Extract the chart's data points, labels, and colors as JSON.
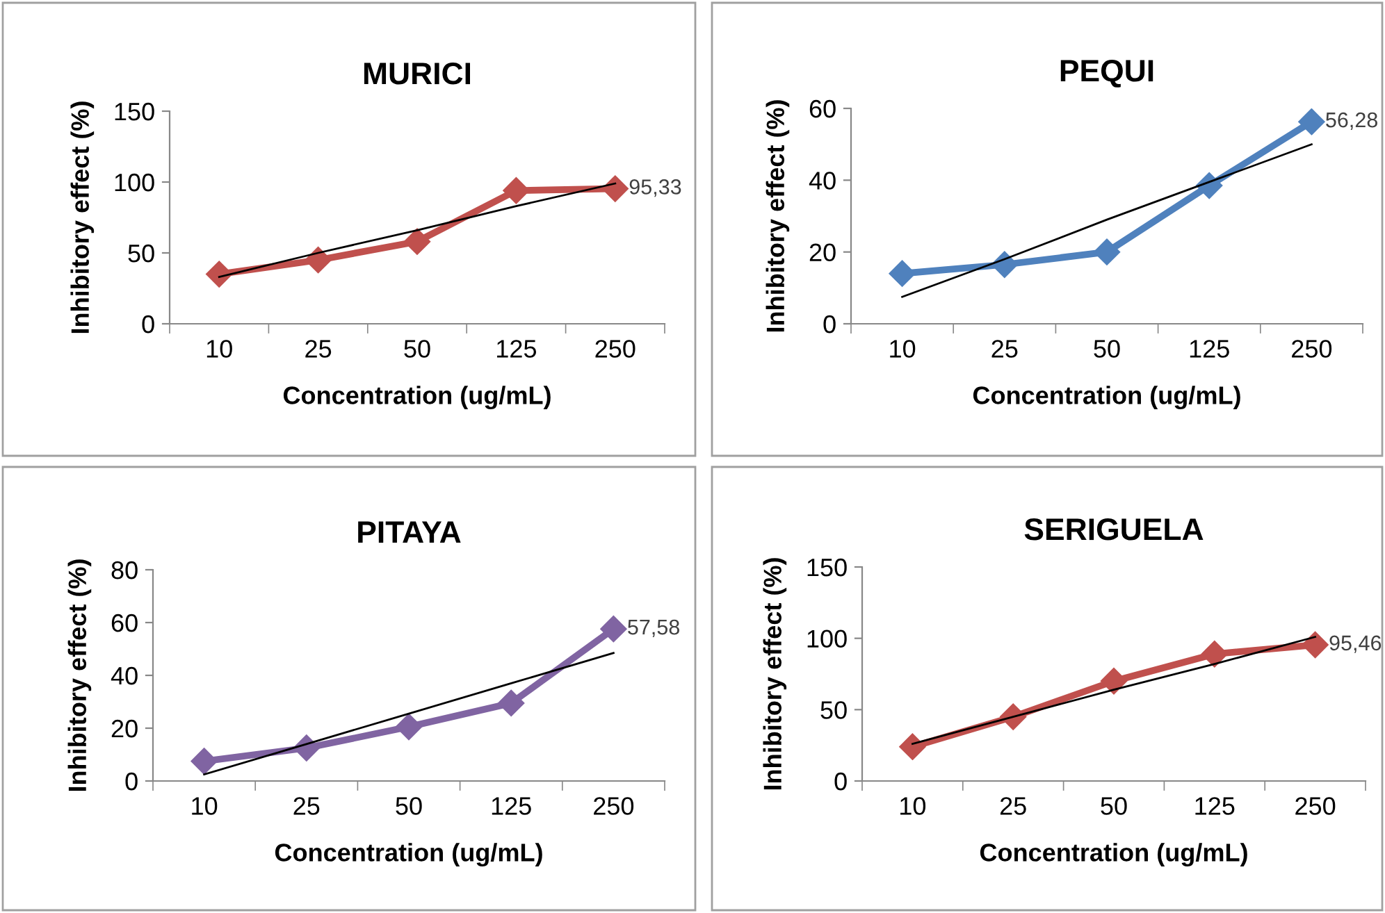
{
  "chart_data": [
    {
      "type": "line",
      "title": "MURICI",
      "xlabel": "Concentration (ug/mL)",
      "ylabel": "Inhibitory effect (%)",
      "categories": [
        "10",
        "25",
        "50",
        "125",
        "250"
      ],
      "ylim": [
        0,
        150
      ],
      "yticks": [
        0,
        50,
        100,
        150
      ],
      "grid": false,
      "series": [
        {
          "color": "#c0504d",
          "marker": "diamond",
          "values": [
            35,
            45,
            58,
            94,
            95.33
          ],
          "value_labels": [
            null,
            null,
            null,
            null,
            "95,33"
          ]
        },
        {
          "type": "line",
          "color": "#000000",
          "marker": "none",
          "values": [
            33,
            50,
            66,
            83,
            99
          ]
        }
      ]
    },
    {
      "type": "line",
      "title": "PEQUI",
      "xlabel": "Concentration (ug/mL)",
      "ylabel": "Inhibitory effect (%)",
      "categories": [
        "10",
        "25",
        "50",
        "125",
        "250"
      ],
      "ylim": [
        0,
        60
      ],
      "yticks": [
        0,
        20,
        40,
        60
      ],
      "grid": false,
      "series": [
        {
          "color": "#4f81bd",
          "marker": "diamond",
          "values": [
            14,
            16.5,
            20,
            38.5,
            56.28
          ],
          "value_labels": [
            null,
            null,
            null,
            null,
            "56,28"
          ]
        },
        {
          "type": "line",
          "color": "#000000",
          "marker": "none",
          "values": [
            7.5,
            18,
            29,
            39.5,
            50
          ]
        }
      ]
    },
    {
      "type": "line",
      "title": "PITAYA",
      "xlabel": "Concentration (ug/mL)",
      "ylabel": "Inhibitory effect (%)",
      "categories": [
        "10",
        "25",
        "50",
        "125",
        "250"
      ],
      "ylim": [
        0,
        80
      ],
      "yticks": [
        0,
        20,
        40,
        60,
        80
      ],
      "grid": false,
      "series": [
        {
          "color": "#8064a2",
          "marker": "diamond",
          "values": [
            7.5,
            12.5,
            20.5,
            29.5,
            57.58
          ],
          "value_labels": [
            null,
            null,
            null,
            null,
            "57,58"
          ]
        },
        {
          "type": "line",
          "color": "#000000",
          "marker": "none",
          "values": [
            2.5,
            14,
            25.5,
            37,
            48.5
          ]
        }
      ]
    },
    {
      "type": "line",
      "title": "SERIGUELA",
      "xlabel": "Concentration (ug/mL)",
      "ylabel": "Inhibitory effect (%)",
      "categories": [
        "10",
        "25",
        "50",
        "125",
        "250"
      ],
      "ylim": [
        0,
        150
      ],
      "yticks": [
        0,
        50,
        100,
        150
      ],
      "grid": false,
      "series": [
        {
          "color": "#c0504d",
          "marker": "diamond",
          "values": [
            24,
            45,
            70,
            89,
            95.46
          ],
          "value_labels": [
            null,
            null,
            null,
            null,
            "95,46"
          ]
        },
        {
          "type": "line",
          "color": "#000000",
          "marker": "none",
          "values": [
            26,
            45,
            64,
            82,
            101
          ]
        }
      ]
    }
  ]
}
